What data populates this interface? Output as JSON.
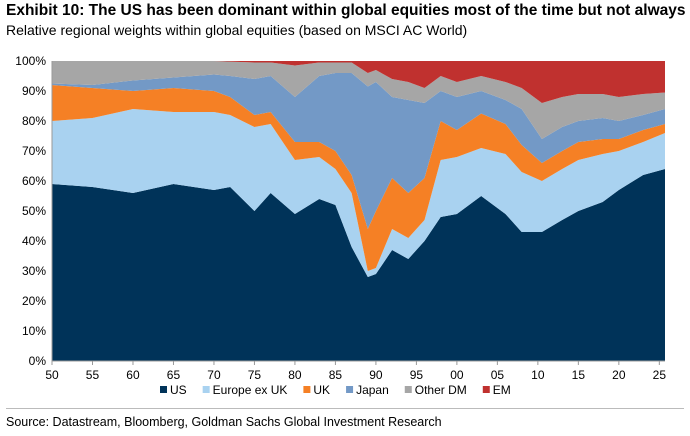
{
  "chart_data": {
    "type": "area",
    "stacked": true,
    "title": "Exhibit 10: The US has been dominant within global equities most of the time but not always",
    "subtitle": "Relative regional weights within global equities (based on MSCI AC World)",
    "source": "Source: Datastream, Bloomberg, Goldman Sachs Global Investment Research",
    "xlim": [
      1950,
      2025.7
    ],
    "ylim": [
      0,
      100
    ],
    "x_ticks": [
      {
        "year": 1950,
        "label": "50"
      },
      {
        "year": 1955,
        "label": "55"
      },
      {
        "year": 1960,
        "label": "60"
      },
      {
        "year": 1965,
        "label": "65"
      },
      {
        "year": 1970,
        "label": "70"
      },
      {
        "year": 1975,
        "label": "75"
      },
      {
        "year": 1980,
        "label": "80"
      },
      {
        "year": 1985,
        "label": "85"
      },
      {
        "year": 1990,
        "label": "90"
      },
      {
        "year": 1995,
        "label": "95"
      },
      {
        "year": 2000,
        "label": "00"
      },
      {
        "year": 2005,
        "label": "05"
      },
      {
        "year": 2010,
        "label": "10"
      },
      {
        "year": 2015,
        "label": "15"
      },
      {
        "year": 2020,
        "label": "20"
      },
      {
        "year": 2025,
        "label": "25"
      }
    ],
    "y_ticks": [
      "0%",
      "10%",
      "20%",
      "30%",
      "40%",
      "50%",
      "60%",
      "70%",
      "80%",
      "90%",
      "100%"
    ],
    "legend_position": "bottom",
    "x": [
      1950,
      1955,
      1960,
      1965,
      1970,
      1972,
      1975,
      1977,
      1980,
      1983,
      1985,
      1987,
      1989,
      1990,
      1992,
      1994,
      1996,
      1998,
      2000,
      2003,
      2006,
      2008,
      2010.5,
      2013,
      2015,
      2018,
      2020,
      2023,
      2025.5
    ],
    "series": [
      {
        "name": "US",
        "color": "#003359",
        "values": [
          59,
          58,
          56,
          59,
          57,
          58,
          50,
          56,
          49,
          54,
          52,
          38,
          28,
          29,
          37,
          34,
          40,
          48,
          49,
          55,
          49,
          43,
          43,
          47,
          50,
          53,
          57,
          62,
          64
        ]
      },
      {
        "name": "Europe ex UK",
        "color": "#a9d2f0",
        "values": [
          21,
          23,
          28,
          24,
          26,
          24,
          28,
          23,
          18,
          14,
          12,
          18,
          2,
          2,
          7,
          7,
          7,
          19,
          19,
          16,
          20,
          20,
          17,
          17,
          17,
          16,
          13,
          11,
          12
        ]
      },
      {
        "name": "UK",
        "color": "#f58025",
        "values": [
          12,
          10,
          6,
          8,
          7,
          6,
          4,
          4,
          6,
          5,
          6,
          6,
          14,
          19,
          17,
          15,
          14,
          13,
          9,
          11.5,
          10,
          9,
          6,
          6,
          6,
          5,
          4,
          4,
          3
        ]
      },
      {
        "name": "Japan",
        "color": "#7399c6",
        "values": [
          0.5,
          1,
          3.5,
          3.5,
          5.5,
          7,
          12,
          12,
          15,
          22,
          26,
          34,
          47.5,
          43,
          27,
          31,
          25,
          10,
          11,
          7.5,
          8,
          12,
          8,
          8,
          7,
          7,
          6,
          5,
          5
        ]
      },
      {
        "name": "Other DM",
        "color": "#a6a6a6",
        "values": [
          7.5,
          8,
          6.5,
          5.5,
          4.5,
          4.8,
          5.5,
          4.5,
          10.5,
          4.5,
          3.5,
          3.5,
          4.5,
          4,
          6,
          6,
          5,
          5,
          5,
          5,
          6,
          7,
          12,
          10,
          9,
          8,
          8,
          7,
          5.5
        ]
      },
      {
        "name": "EM",
        "color": "#c0312f",
        "values": [
          0,
          0,
          0,
          0,
          0,
          0.2,
          0.5,
          0.5,
          1.5,
          0.5,
          0.5,
          0.5,
          4,
          3,
          6,
          7,
          9,
          5,
          7,
          5,
          7,
          9,
          14,
          12,
          11,
          11,
          12,
          11,
          10.5
        ]
      }
    ]
  }
}
